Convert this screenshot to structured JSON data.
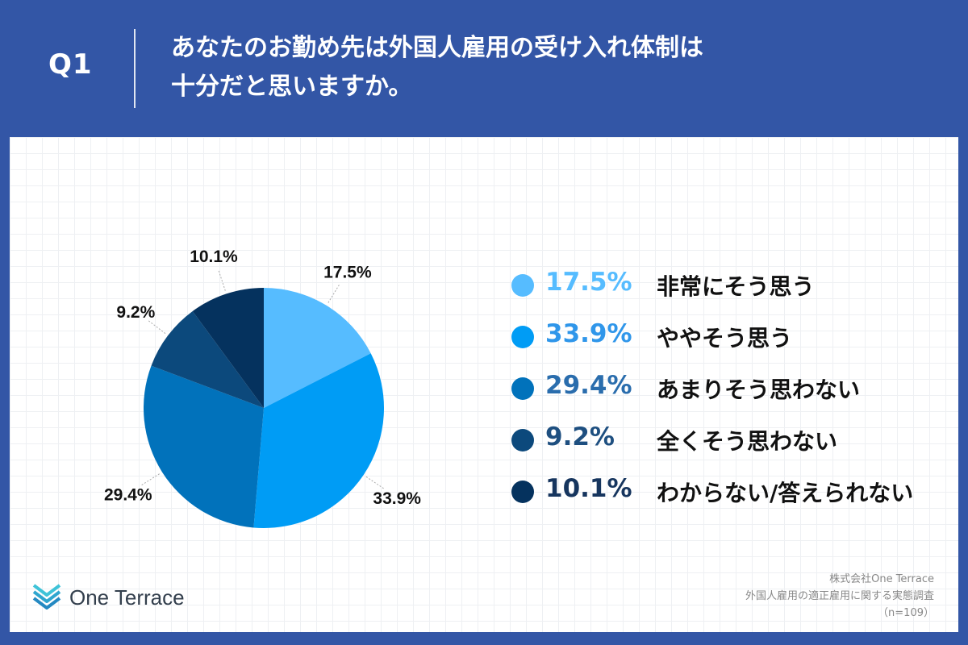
{
  "header": {
    "q_label": "Q1",
    "question_line1": "あなたのお勤め先は外国人雇用の受け入れ体制は",
    "question_line2": "十分だと思いますか。"
  },
  "chart_data": {
    "type": "pie",
    "title": "",
    "categories": [
      "非常にそう思う",
      "ややそう思う",
      "あまりそう思わない",
      "全くそう思わない",
      "わからない/答えられない"
    ],
    "values": [
      17.5,
      33.9,
      29.4,
      9.2,
      10.1
    ],
    "labels": [
      "17.5%",
      "33.9%",
      "29.4%",
      "9.2%",
      "10.1%"
    ],
    "colors": [
      "#56bcff",
      "#009cf5",
      "#0172bb",
      "#0c497c",
      "#05325e"
    ],
    "legend_text_colors": [
      "#56bcff",
      "#2f96ea",
      "#2a6dad",
      "#1e4f80",
      "#16355e"
    ],
    "legend_position": "right",
    "start_angle": "12 o'clock, clockwise"
  },
  "logo": {
    "text": "One Terrace",
    "icon": "chevron-stack-icon"
  },
  "source": {
    "line1": "株式会社One Terrace",
    "line2": "外国人雇用の適正雇用に関する実態調査",
    "line3": "（n=109）"
  }
}
